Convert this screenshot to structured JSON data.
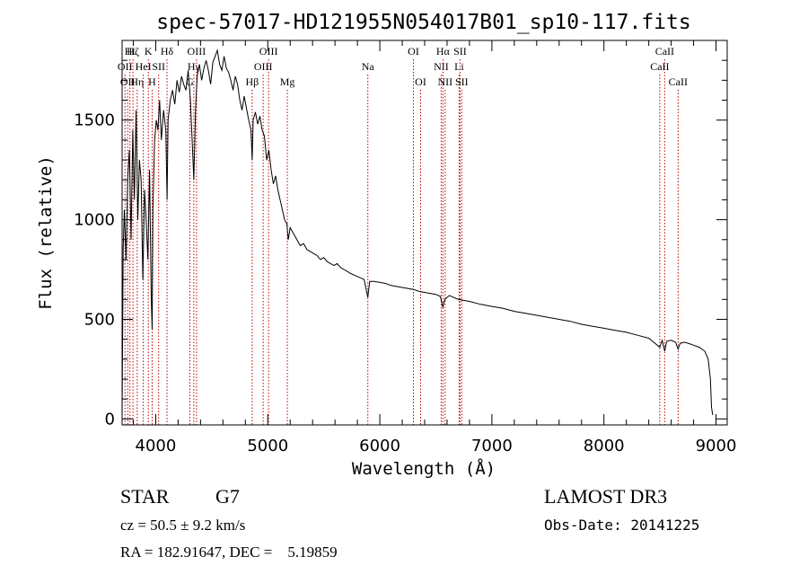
{
  "chart_data": {
    "type": "line",
    "title": "spec-57017-HD121955N054017B01_sp10-117.fits",
    "xlabel": "Wavelength (Å)",
    "ylabel": "Flux (relative)",
    "xlim": [
      3700,
      9100
    ],
    "ylim": [
      -30,
      1900
    ],
    "x_ticks": [
      4000,
      5000,
      6000,
      7000,
      8000,
      9000
    ],
    "x_tick_labels": [
      "4000",
      "5000",
      "6000",
      "7000",
      "8000",
      "9000"
    ],
    "y_ticks": [
      0,
      500,
      1000,
      1500
    ],
    "y_tick_labels": [
      "0",
      "500",
      "1000",
      "1500"
    ],
    "series": [
      {
        "name": "flux",
        "x": [
          3700,
          3710,
          3720,
          3735,
          3750,
          3765,
          3780,
          3795,
          3810,
          3825,
          3840,
          3855,
          3870,
          3885,
          3900,
          3915,
          3930,
          3945,
          3960,
          3968,
          3975,
          3990,
          4005,
          4020,
          4035,
          4050,
          4070,
          4090,
          4101,
          4110,
          4130,
          4150,
          4170,
          4190,
          4210,
          4230,
          4250,
          4270,
          4290,
          4310,
          4325,
          4340,
          4355,
          4370,
          4390,
          4410,
          4430,
          4450,
          4470,
          4490,
          4510,
          4530,
          4550,
          4570,
          4590,
          4610,
          4630,
          4650,
          4670,
          4690,
          4710,
          4730,
          4750,
          4770,
          4790,
          4810,
          4830,
          4850,
          4861,
          4870,
          4890,
          4910,
          4930,
          4950,
          4970,
          4990,
          5010,
          5030,
          5050,
          5070,
          5090,
          5110,
          5130,
          5150,
          5170,
          5183,
          5200,
          5230,
          5260,
          5290,
          5320,
          5350,
          5380,
          5410,
          5440,
          5470,
          5500,
          5530,
          5560,
          5590,
          5620,
          5650,
          5680,
          5710,
          5740,
          5780,
          5820,
          5860,
          5893,
          5910,
          5950,
          6000,
          6050,
          6100,
          6150,
          6200,
          6250,
          6300,
          6350,
          6400,
          6450,
          6500,
          6540,
          6563,
          6580,
          6620,
          6700,
          6800,
          6900,
          7000,
          7100,
          7200,
          7300,
          7400,
          7500,
          7600,
          7700,
          7800,
          7900,
          8000,
          8100,
          8200,
          8300,
          8400,
          8498,
          8520,
          8542,
          8560,
          8600,
          8640,
          8662,
          8680,
          8720,
          8760,
          8800,
          8850,
          8900,
          8930,
          8950,
          8960,
          8970
        ],
        "y": [
          0,
          850,
          1050,
          800,
          1200,
          1350,
          900,
          1450,
          1100,
          1550,
          1000,
          1300,
          1200,
          700,
          1150,
          1000,
          800,
          1250,
          600,
          450,
          1050,
          1400,
          1500,
          1450,
          1600,
          1400,
          1550,
          1450,
          1100,
          1500,
          1600,
          1650,
          1580,
          1700,
          1640,
          1720,
          1680,
          1650,
          1750,
          1600,
          1400,
          1200,
          1550,
          1720,
          1780,
          1700,
          1760,
          1800,
          1750,
          1680,
          1790,
          1820,
          1850,
          1780,
          1750,
          1820,
          1760,
          1740,
          1700,
          1650,
          1720,
          1680,
          1600,
          1550,
          1620,
          1560,
          1500,
          1450,
          1300,
          1500,
          1540,
          1480,
          1520,
          1450,
          1420,
          1300,
          1350,
          1250,
          1180,
          1220,
          1150,
          1100,
          1050,
          1000,
          980,
          900,
          960,
          930,
          900,
          870,
          880,
          850,
          840,
          830,
          820,
          800,
          810,
          790,
          780,
          770,
          780,
          760,
          750,
          740,
          730,
          720,
          710,
          700,
          610,
          690,
          690,
          685,
          680,
          670,
          665,
          660,
          655,
          650,
          640,
          635,
          630,
          625,
          615,
          560,
          600,
          620,
          600,
          590,
          575,
          565,
          555,
          540,
          530,
          520,
          510,
          500,
          490,
          475,
          465,
          455,
          445,
          435,
          420,
          405,
          360,
          395,
          340,
          390,
          395,
          385,
          350,
          380,
          385,
          378,
          370,
          360,
          340,
          300,
          200,
          60,
          20
        ]
      }
    ],
    "line_markers": [
      {
        "wavelength": 3726,
        "label": "OII",
        "row": 2
      },
      {
        "wavelength": 3750,
        "label": "OII",
        "row": 3
      },
      {
        "wavelength": 3770,
        "label": "Ht",
        "row": 1
      },
      {
        "wavelength": 3797,
        "label": "Hζ",
        "row": 1
      },
      {
        "wavelength": 3835,
        "label": "Hη",
        "row": 3
      },
      {
        "wavelength": 3889,
        "label": "HeI",
        "row": 2
      },
      {
        "wavelength": 3934,
        "label": "K",
        "row": 1
      },
      {
        "wavelength": 3968,
        "label": "H",
        "row": 3
      },
      {
        "wavelength": 4026,
        "label": "SII",
        "row": 2
      },
      {
        "wavelength": 4101,
        "label": "Hδ",
        "row": 1
      },
      {
        "wavelength": 4305,
        "label": "G",
        "row": 3
      },
      {
        "wavelength": 4340,
        "label": "Hγ",
        "row": 2
      },
      {
        "wavelength": 4364,
        "label": "OIII",
        "row": 1
      },
      {
        "wavelength": 4861,
        "label": "Hβ",
        "row": 3
      },
      {
        "wavelength": 4959,
        "label": "OIII",
        "row": 2
      },
      {
        "wavelength": 5007,
        "label": "OIII",
        "row": 1
      },
      {
        "wavelength": 5175,
        "label": "Mg",
        "row": 3
      },
      {
        "wavelength": 5893,
        "label": "Na",
        "row": 2
      },
      {
        "wavelength": 6300,
        "label": "OI",
        "row": 1
      },
      {
        "wavelength": 6364,
        "label": "OI",
        "row": 3
      },
      {
        "wavelength": 6548,
        "label": "NII",
        "row": 2
      },
      {
        "wavelength": 6563,
        "label": "Hα",
        "row": 1
      },
      {
        "wavelength": 6583,
        "label": "NII",
        "row": 3
      },
      {
        "wavelength": 6708,
        "label": "Li",
        "row": 2
      },
      {
        "wavelength": 6716,
        "label": "SII",
        "row": 1
      },
      {
        "wavelength": 6731,
        "label": "SII",
        "row": 3
      },
      {
        "wavelength": 8498,
        "label": "CaII",
        "row": 2
      },
      {
        "wavelength": 8542,
        "label": "CaII",
        "row": 1
      },
      {
        "wavelength": 8662,
        "label": "CaII",
        "row": 3
      }
    ],
    "annotations": {
      "object_class": "STAR",
      "subclass": "G7",
      "survey": "LAMOST DR3",
      "redshift_text": "cz = 50.5 ± 9.2 km/s",
      "obs_date_text": "Obs-Date: 20141225",
      "coords_text": "RA = 182.91647, DEC =    5.19859"
    }
  }
}
